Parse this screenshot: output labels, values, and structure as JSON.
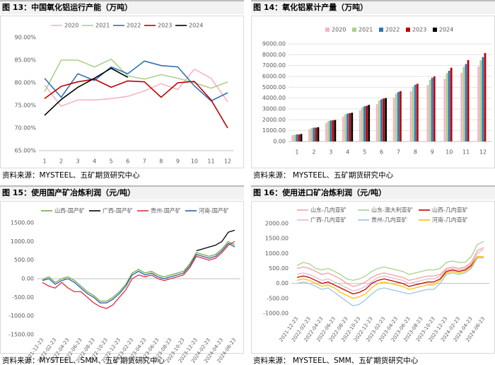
{
  "chart_data": [
    {
      "type": "line",
      "title": "图 13：中国氧化铝运行产能（万吨）",
      "source": "资料来源：MYSTEEL、五矿期货研究中心",
      "categories": [
        "1",
        "2",
        "3",
        "4",
        "5",
        "6",
        "7",
        "8",
        "9",
        "10",
        "11",
        "12"
      ],
      "ylim": [
        65,
        90
      ],
      "yticks": [
        {
          "value": 65,
          "label": "65.00%"
        },
        {
          "value": 70,
          "label": "70.00%"
        },
        {
          "value": 75,
          "label": "75.00%"
        },
        {
          "value": 80,
          "label": "80.00%"
        },
        {
          "value": 85,
          "label": "85.00%"
        },
        {
          "value": 90,
          "label": "90.00%"
        }
      ],
      "grid": false,
      "series": [
        {
          "name": "2020",
          "color": "#f4b6c2",
          "values": [
            79.5,
            74.8,
            76.2,
            76.2,
            76.5,
            77,
            78.2,
            79.8,
            78.5,
            83,
            81,
            75.8
          ]
        },
        {
          "name": "2021",
          "color": "#a9d18e",
          "values": [
            78,
            85,
            85,
            83.5,
            85.2,
            81.5,
            80.8,
            81.8,
            81,
            80,
            78.8,
            80.2
          ]
        },
        {
          "name": "2022",
          "color": "#2e75b6",
          "values": [
            81,
            76.8,
            82,
            80.5,
            83.5,
            82,
            84.8,
            83.8,
            83.5,
            79.3,
            76,
            77.8
          ]
        },
        {
          "name": "2023",
          "color": "#c00000",
          "values": [
            76.5,
            79.2,
            80.2,
            80.8,
            79,
            80.4,
            80.2,
            76.8,
            80,
            80.3,
            76.2,
            70
          ]
        },
        {
          "name": "2024",
          "color": "#000000",
          "values": [
            72.8,
            76.3,
            79,
            81,
            83.2,
            81.2,
            null,
            null,
            null,
            null,
            null,
            null
          ]
        }
      ]
    },
    {
      "type": "bar",
      "title": "图 14：氧化铝累计产量（万吨）",
      "source": "资料来源： MYSTEEL、五矿期货研究中心",
      "categories": [
        "1",
        "2",
        "3",
        "4",
        "5",
        "6",
        "7",
        "8",
        "9",
        "10",
        "11",
        "12"
      ],
      "ylim": [
        0,
        9000
      ],
      "yticks": [
        {
          "value": 0,
          "label": "0.00"
        },
        {
          "value": 1000,
          "label": "1000.00"
        },
        {
          "value": 2000,
          "label": "2000.00"
        },
        {
          "value": 3000,
          "label": "3000.00"
        },
        {
          "value": 4000,
          "label": "4000.00"
        },
        {
          "value": 5000,
          "label": "5000.00"
        },
        {
          "value": 6000,
          "label": "6000.00"
        },
        {
          "value": 7000,
          "label": "7000.00"
        },
        {
          "value": 8000,
          "label": "8000.00"
        },
        {
          "value": 9000,
          "label": "9000.00"
        }
      ],
      "grid": true,
      "series": [
        {
          "name": "2020",
          "color": "#f4b6c2",
          "values": [
            580,
            1130,
            1720,
            2290,
            2880,
            3450,
            4040,
            4620,
            5200,
            5790,
            6340,
            6920
          ]
        },
        {
          "name": "2021",
          "color": "#a9d18e",
          "values": [
            620,
            1230,
            1880,
            2500,
            3150,
            3780,
            4420,
            5060,
            5680,
            6300,
            6880,
            7480
          ]
        },
        {
          "name": "2022",
          "color": "#2e75b6",
          "values": [
            650,
            1270,
            1930,
            2570,
            3240,
            3890,
            4560,
            5230,
            5880,
            6520,
            7140,
            7780
          ]
        },
        {
          "name": "2023",
          "color": "#c00000",
          "values": [
            650,
            1280,
            1950,
            2610,
            3290,
            3960,
            4640,
            5320,
            6000,
            6800,
            7500,
            8150
          ]
        },
        {
          "name": "2024",
          "color": "#000000",
          "values": [
            690,
            1310,
            1980,
            2650,
            3370,
            4000,
            null,
            null,
            null,
            null,
            null,
            null
          ]
        }
      ]
    },
    {
      "type": "line",
      "title": "图 15：使用国产矿冶炼利润（元/吨）",
      "source": "资料来源：MYSTEEL、SMM、五矿期货研究中心",
      "categories": [
        "2021-12-23",
        null,
        "2022-02-23",
        null,
        "2022-04-23",
        null,
        "2022-06-23",
        null,
        "2022-08-23",
        null,
        "2022-10-23",
        null,
        "2022-12-23",
        null,
        "2023-02-23",
        null,
        "2023-04-23",
        null,
        "2023-06-23",
        null,
        "2023-08-23",
        null,
        "2023-10-23",
        null,
        "2023-12-23",
        null,
        "2024-02-23",
        null,
        "2024-04-23",
        null,
        "2024-06-23"
      ],
      "ylim": [
        -1500,
        1500
      ],
      "yticks": [
        {
          "value": -1500,
          "label": "-1500.00"
        },
        {
          "value": -1000,
          "label": "-1000.00"
        },
        {
          "value": -500,
          "label": "-500.00"
        },
        {
          "value": 0,
          "label": "0.00"
        },
        {
          "value": 500,
          "label": "500.00"
        },
        {
          "value": 1000,
          "label": "1000.00"
        },
        {
          "value": 1500,
          "label": "1500.00"
        }
      ],
      "grid": false,
      "series": [
        {
          "name": "山西-国产矿",
          "color": "#70ad47",
          "values": [
            -20,
            50,
            -100,
            0,
            50,
            -50,
            -200,
            -350,
            -450,
            -600,
            -600,
            -500,
            -350,
            -150,
            150,
            250,
            150,
            200,
            100,
            50,
            100,
            150,
            200,
            400,
            700,
            650,
            600,
            650,
            800,
            1000,
            900
          ]
        },
        {
          "name": "广西-国产矿",
          "color": "#000000",
          "values": [
            null,
            null,
            null,
            null,
            null,
            null,
            null,
            null,
            null,
            null,
            null,
            null,
            null,
            null,
            null,
            null,
            null,
            null,
            null,
            null,
            null,
            null,
            null,
            null,
            750,
            800,
            850,
            900,
            1000,
            1250,
            1300
          ]
        },
        {
          "name": "贵州-国产矿",
          "color": "#e0303a",
          "values": [
            -100,
            -200,
            -250,
            -100,
            -250,
            -350,
            -350,
            -500,
            -650,
            -750,
            -800,
            -700,
            -500,
            -300,
            0,
            100,
            50,
            100,
            0,
            -50,
            0,
            50,
            100,
            300,
            600,
            550,
            500,
            550,
            700,
            900,
            1000
          ]
        },
        {
          "name": "河南-国产矿",
          "color": "#2e5fa8",
          "values": [
            -50,
            0,
            -150,
            -50,
            0,
            -100,
            -250,
            -400,
            -500,
            -650,
            -650,
            -550,
            -400,
            -200,
            100,
            200,
            100,
            150,
            50,
            0,
            50,
            100,
            150,
            350,
            650,
            600,
            550,
            600,
            750,
            950,
            850
          ]
        }
      ]
    },
    {
      "type": "line",
      "title": "图 16：使用进口矿冶炼利润（元/吨）",
      "source": "资料来源： MYSTEEL、SMM、五矿期货研究中心",
      "categories": [
        "2021-12-23",
        null,
        "2022-02-23",
        null,
        "2022-04-23",
        null,
        "2022-06-23",
        null,
        "2022-08-23",
        null,
        "2022-10-23",
        null,
        "2022-12-23",
        null,
        "2023-02-23",
        null,
        "2023-04-23",
        null,
        "2023-06-23",
        null,
        "2023-08-23",
        null,
        "2023-10-23",
        null,
        "2023-12-23",
        null,
        "2024-02-23",
        null,
        "2024-04-23",
        null,
        "2024-06-23"
      ],
      "ylim": [
        -1000,
        2000
      ],
      "yticks": [
        {
          "value": -1000,
          "label": "-1000.00"
        },
        {
          "value": -500,
          "label": "-500.00"
        },
        {
          "value": 0,
          "label": "0.00"
        },
        {
          "value": 500,
          "label": "500.00"
        },
        {
          "value": 1000,
          "label": "1000.00"
        },
        {
          "value": 1500,
          "label": "1500.00"
        },
        {
          "value": 2000,
          "label": "2000.00"
        }
      ],
      "grid": false,
      "series": [
        {
          "name": "山东-几内亚矿",
          "color": "#f4a0a0",
          "values": [
            500,
            550,
            500,
            400,
            300,
            350,
            250,
            150,
            0,
            -100,
            -50,
            50,
            200,
            300,
            350,
            300,
            250,
            200,
            100,
            150,
            200,
            250,
            250,
            300,
            500,
            550,
            500,
            550,
            700,
            1100,
            1200
          ]
        },
        {
          "name": "山东-澳大利亚矿",
          "color": "#a9d18e",
          "values": [
            600,
            700,
            650,
            500,
            450,
            500,
            400,
            300,
            150,
            100,
            150,
            250,
            400,
            500,
            550,
            500,
            450,
            400,
            300,
            350,
            400,
            450,
            450,
            500,
            700,
            750,
            700,
            700,
            900,
            1300,
            1400
          ]
        },
        {
          "name": "山西-几内亚矿",
          "color": "#c00000",
          "values": [
            200,
            250,
            200,
            100,
            0,
            50,
            -50,
            -150,
            -250,
            -350,
            -300,
            -200,
            0,
            100,
            150,
            100,
            50,
            0,
            -100,
            -50,
            0,
            50,
            50,
            150,
            400,
            450,
            400,
            450,
            600,
            900,
            900
          ]
        },
        {
          "name": "广西-几内亚矿",
          "color": "#e6b8c8",
          "values": [
            300,
            350,
            300,
            200,
            100,
            150,
            50,
            -50,
            -150,
            -250,
            -200,
            -100,
            50,
            200,
            250,
            200,
            150,
            100,
            0,
            50,
            100,
            150,
            150,
            250,
            450,
            500,
            450,
            500,
            650,
            1000,
            1150
          ]
        },
        {
          "name": "贵州-几内亚矿",
          "color": "#9dc3e6",
          "values": [
            0,
            50,
            0,
            -100,
            -200,
            -150,
            -300,
            -450,
            -600,
            -750,
            -700,
            -550,
            -350,
            -200,
            -150,
            -200,
            -250,
            -300,
            -350,
            -300,
            -250,
            -200,
            -200,
            0,
            300,
            350,
            300,
            350,
            500,
            850,
            850
          ]
        },
        {
          "name": "河南-几内亚矿",
          "color": "#ffc000",
          "values": [
            100,
            150,
            100,
            0,
            -100,
            -50,
            -150,
            -300,
            -400,
            -500,
            -450,
            -350,
            -150,
            0,
            50,
            0,
            -50,
            -100,
            -200,
            -150,
            -100,
            -50,
            -50,
            100,
            350,
            400,
            350,
            400,
            550,
            900,
            900
          ]
        }
      ]
    }
  ]
}
